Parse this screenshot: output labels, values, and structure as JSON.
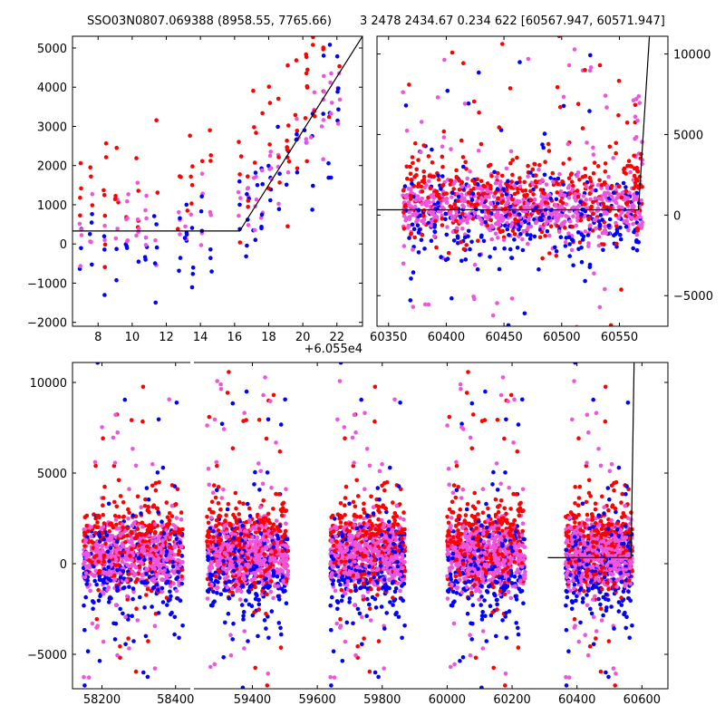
{
  "header": {
    "left_title": "SSO03N0807.069388 (8958.55, 7765.66)",
    "right_title": "3 2478 2434.67 0.234 622 [60567.947, 60571.947]"
  },
  "colors": {
    "red": "#ff0000",
    "blue": "#0000ff",
    "magenta": "#ee55dd",
    "line": "#000000"
  },
  "chart_data": [
    {
      "type": "scatter",
      "title": "SSO03N0807.069388 (8958.55, 7765.66)",
      "xlabel": "",
      "ylabel": "",
      "x_offset_label": "+6.055e4",
      "xlim": [
        6.5,
        23.5
      ],
      "ylim": [
        -2100,
        5300
      ],
      "xticks": [
        8,
        10,
        12,
        14,
        16,
        18,
        20,
        22
      ],
      "yticks": [
        -2000,
        -1000,
        0,
        1000,
        2000,
        3000,
        4000,
        5000
      ],
      "series_colors": [
        "red",
        "blue",
        "magenta"
      ],
      "model_line": [
        [
          6.5,
          330
        ],
        [
          16.3,
          330
        ],
        [
          23.5,
          5300
        ]
      ],
      "columns": [
        7,
        7.6,
        8.4,
        9.1,
        9.7,
        10.3,
        10.8,
        11.4,
        12.8,
        13.2,
        13.5,
        14.1,
        14.6,
        16.3,
        16.8,
        17.2,
        17.6,
        18.1,
        18.6,
        19.1,
        19.6,
        20.2,
        20.6,
        21.2,
        21.6,
        22.1
      ],
      "grid": false
    },
    {
      "type": "scatter",
      "title": "3 2478 2434.67 0.234 622 [60567.947, 60571.947]",
      "xlabel": "",
      "ylabel": "",
      "xlim": [
        60340,
        60592
      ],
      "ylim": [
        -6900,
        11100
      ],
      "xticks": [
        60350,
        60400,
        60450,
        60500,
        60550
      ],
      "yticks": [
        -5000,
        0,
        5000,
        10000
      ],
      "ytick_side": "right",
      "series_colors": [
        "red",
        "blue",
        "magenta"
      ],
      "model_line": [
        [
          60340,
          330
        ],
        [
          60566.5,
          330
        ],
        [
          60576,
          11100
        ]
      ],
      "data_range": [
        60362,
        60570
      ],
      "grid": false
    },
    {
      "type": "scatter",
      "xlabel": "",
      "ylabel": "",
      "broken_axis": true,
      "xticks": [
        58200,
        58400,
        59400,
        59600,
        59800,
        60000,
        60200,
        60400,
        60600
      ],
      "yticks": [
        -5000,
        0,
        5000,
        10000
      ],
      "ylim": [
        -6900,
        11100
      ],
      "segments": [
        {
          "xlim": [
            58120,
            58440
          ],
          "data_range": [
            58150,
            58420
          ]
        },
        {
          "xlim": [
            59220,
            60680
          ],
          "clusters": [
            [
              59260,
              59510
            ],
            [
              59640,
              59870
            ],
            [
              60000,
              60240
            ],
            [
              60365,
              60570
            ]
          ]
        }
      ],
      "series_colors": [
        "red",
        "blue",
        "magenta"
      ],
      "model_line": [
        [
          60310,
          330
        ],
        [
          60566.5,
          330
        ],
        [
          60576,
          11100
        ]
      ],
      "grid": false
    }
  ]
}
